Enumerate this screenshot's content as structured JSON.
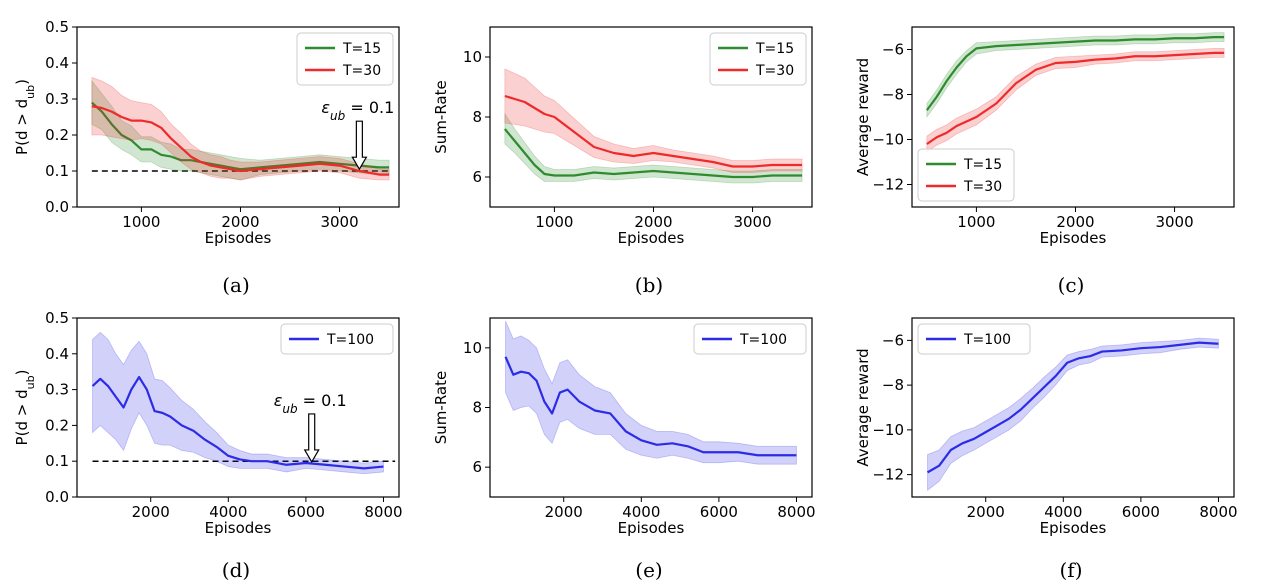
{
  "chart_data": [
    {
      "id": "a",
      "panel_label": "(a)",
      "type": "line",
      "xlabel": "Episodes",
      "ylabel": "P(d > dub)",
      "xlim": [
        350,
        3600
      ],
      "ylim": [
        0,
        0.5
      ],
      "xticks": [
        1000,
        2000,
        3000
      ],
      "yticks": [
        0.0,
        0.1,
        0.2,
        0.3,
        0.4,
        0.5
      ],
      "ytick_labels": [
        "0.0",
        "0.1",
        "0.2",
        "0.3",
        "0.4",
        "0.5"
      ],
      "legend_loc": "upper-right",
      "reference_line": {
        "y": 0.1,
        "style": "dashed",
        "color": "#000000"
      },
      "annotation": {
        "text": "ε_ub = 0.1",
        "arrow_to": [
          3200,
          0.105
        ]
      },
      "series": [
        {
          "name": "T=15",
          "color": "#2e8b2e",
          "x": [
            500,
            600,
            700,
            800,
            900,
            1000,
            1100,
            1200,
            1300,
            1400,
            1500,
            1600,
            1700,
            1800,
            1900,
            2000,
            2200,
            2400,
            2600,
            2800,
            3000,
            3200,
            3400,
            3500
          ],
          "y": [
            0.29,
            0.265,
            0.23,
            0.2,
            0.185,
            0.16,
            0.16,
            0.145,
            0.14,
            0.13,
            0.13,
            0.125,
            0.12,
            0.115,
            0.11,
            0.105,
            0.11,
            0.115,
            0.12,
            0.125,
            0.12,
            0.115,
            0.11,
            0.11
          ],
          "band": [
            0.06,
            0.05,
            0.05,
            0.04,
            0.04,
            0.035,
            0.035,
            0.035,
            0.035,
            0.03,
            0.03,
            0.03,
            0.03,
            0.03,
            0.03,
            0.03,
            0.02,
            0.02,
            0.02,
            0.02,
            0.02,
            0.02,
            0.02,
            0.02
          ]
        },
        {
          "name": "T=30",
          "color": "#ee2a2a",
          "x": [
            500,
            600,
            700,
            800,
            900,
            1000,
            1100,
            1200,
            1300,
            1400,
            1500,
            1600,
            1700,
            1800,
            1900,
            2000,
            2200,
            2400,
            2600,
            2800,
            3000,
            3200,
            3400,
            3500
          ],
          "y": [
            0.28,
            0.275,
            0.265,
            0.25,
            0.24,
            0.24,
            0.235,
            0.22,
            0.19,
            0.165,
            0.14,
            0.125,
            0.115,
            0.11,
            0.105,
            0.1,
            0.105,
            0.11,
            0.115,
            0.12,
            0.115,
            0.1,
            0.09,
            0.09
          ],
          "band": [
            0.08,
            0.075,
            0.07,
            0.06,
            0.055,
            0.05,
            0.05,
            0.045,
            0.04,
            0.04,
            0.035,
            0.03,
            0.03,
            0.03,
            0.025,
            0.025,
            0.02,
            0.02,
            0.02,
            0.02,
            0.02,
            0.02,
            0.015,
            0.015
          ]
        }
      ]
    },
    {
      "id": "b",
      "panel_label": "(b)",
      "type": "line",
      "xlabel": "Episodes",
      "ylabel": "Sum-Rate",
      "xlim": [
        350,
        3600
      ],
      "ylim": [
        5,
        11
      ],
      "xticks": [
        1000,
        2000,
        3000
      ],
      "yticks": [
        6,
        8,
        10
      ],
      "ytick_labels": [
        "6",
        "8",
        "10"
      ],
      "legend_loc": "upper-right",
      "series": [
        {
          "name": "T=15",
          "color": "#2e8b2e",
          "x": [
            500,
            600,
            700,
            800,
            900,
            1000,
            1200,
            1400,
            1600,
            1800,
            2000,
            2200,
            2400,
            2600,
            2800,
            3000,
            3200,
            3400,
            3500
          ],
          "y": [
            7.6,
            7.2,
            6.8,
            6.4,
            6.1,
            6.05,
            6.05,
            6.15,
            6.1,
            6.15,
            6.2,
            6.15,
            6.1,
            6.05,
            6.0,
            6.0,
            6.05,
            6.05,
            6.05
          ],
          "band": [
            0.5,
            0.4,
            0.35,
            0.3,
            0.25,
            0.2,
            0.2,
            0.2,
            0.2,
            0.2,
            0.2,
            0.2,
            0.2,
            0.2,
            0.2,
            0.2,
            0.2,
            0.2,
            0.2
          ]
        },
        {
          "name": "T=30",
          "color": "#ee2a2a",
          "x": [
            500,
            600,
            700,
            800,
            900,
            1000,
            1200,
            1400,
            1600,
            1800,
            2000,
            2200,
            2400,
            2600,
            2800,
            3000,
            3200,
            3400,
            3500
          ],
          "y": [
            8.7,
            8.6,
            8.5,
            8.3,
            8.1,
            8.0,
            7.5,
            7.0,
            6.8,
            6.7,
            6.8,
            6.7,
            6.6,
            6.5,
            6.35,
            6.35,
            6.4,
            6.4,
            6.4
          ],
          "band": [
            0.9,
            0.85,
            0.8,
            0.7,
            0.6,
            0.55,
            0.45,
            0.35,
            0.3,
            0.25,
            0.25,
            0.2,
            0.2,
            0.2,
            0.2,
            0.2,
            0.2,
            0.2,
            0.2
          ]
        }
      ]
    },
    {
      "id": "c",
      "panel_label": "(c)",
      "type": "line",
      "xlabel": "Episodes",
      "ylabel": "Average reward",
      "xlim": [
        350,
        3600
      ],
      "ylim": [
        -13,
        -5
      ],
      "xticks": [
        1000,
        2000,
        3000
      ],
      "yticks": [
        -12,
        -10,
        -8,
        -6
      ],
      "ytick_labels": [
        "−12",
        "−10",
        "−8",
        "−6"
      ],
      "legend_loc": "lower-left",
      "series": [
        {
          "name": "T=15",
          "color": "#2e8b2e",
          "x": [
            500,
            600,
            700,
            800,
            900,
            1000,
            1200,
            1400,
            1600,
            1800,
            2000,
            2200,
            2400,
            2600,
            2800,
            3000,
            3200,
            3400,
            3500
          ],
          "y": [
            -8.7,
            -8.1,
            -7.4,
            -6.8,
            -6.3,
            -5.95,
            -5.85,
            -5.8,
            -5.75,
            -5.7,
            -5.65,
            -5.6,
            -5.6,
            -5.55,
            -5.55,
            -5.5,
            -5.5,
            -5.45,
            -5.45
          ],
          "band": [
            0.3,
            0.3,
            0.3,
            0.3,
            0.25,
            0.25,
            0.2,
            0.2,
            0.2,
            0.2,
            0.2,
            0.2,
            0.2,
            0.2,
            0.2,
            0.2,
            0.2,
            0.2,
            0.2
          ]
        },
        {
          "name": "T=30",
          "color": "#ee2a2a",
          "x": [
            500,
            600,
            700,
            800,
            900,
            1000,
            1200,
            1400,
            1600,
            1800,
            2000,
            2200,
            2400,
            2600,
            2800,
            3000,
            3200,
            3400,
            3500
          ],
          "y": [
            -10.2,
            -9.9,
            -9.7,
            -9.4,
            -9.2,
            -9.0,
            -8.4,
            -7.5,
            -6.9,
            -6.6,
            -6.55,
            -6.45,
            -6.4,
            -6.3,
            -6.3,
            -6.25,
            -6.2,
            -6.15,
            -6.15
          ],
          "band": [
            0.35,
            0.35,
            0.35,
            0.35,
            0.35,
            0.35,
            0.3,
            0.3,
            0.25,
            0.25,
            0.25,
            0.2,
            0.2,
            0.2,
            0.2,
            0.2,
            0.2,
            0.2,
            0.2
          ]
        }
      ]
    },
    {
      "id": "d",
      "panel_label": "(d)",
      "type": "line",
      "xlabel": "Episodes",
      "ylabel": "P(d > dub)",
      "xlim": [
        100,
        8400
      ],
      "ylim": [
        0,
        0.5
      ],
      "xticks": [
        2000,
        4000,
        6000,
        8000
      ],
      "yticks": [
        0.0,
        0.1,
        0.2,
        0.3,
        0.4,
        0.5
      ],
      "ytick_labels": [
        "0.0",
        "0.1",
        "0.2",
        "0.3",
        "0.4",
        "0.5"
      ],
      "legend_loc": "upper-right",
      "reference_line": {
        "y": 0.1,
        "style": "dashed",
        "color": "#000000"
      },
      "annotation": {
        "text": "ε_ub = 0.1",
        "arrow_to": [
          6150,
          0.098
        ]
      },
      "series": [
        {
          "name": "T=100",
          "color": "#2c2ce6",
          "x": [
            500,
            700,
            900,
            1100,
            1300,
            1500,
            1700,
            1900,
            2100,
            2300,
            2500,
            2800,
            3100,
            3400,
            3700,
            4000,
            4300,
            4600,
            5000,
            5500,
            6000,
            6500,
            7000,
            7500,
            8000
          ],
          "y": [
            0.31,
            0.33,
            0.31,
            0.28,
            0.25,
            0.3,
            0.335,
            0.3,
            0.24,
            0.235,
            0.225,
            0.2,
            0.185,
            0.16,
            0.14,
            0.115,
            0.105,
            0.1,
            0.1,
            0.09,
            0.095,
            0.09,
            0.085,
            0.08,
            0.085
          ],
          "band": [
            0.13,
            0.13,
            0.13,
            0.12,
            0.12,
            0.11,
            0.1,
            0.1,
            0.09,
            0.09,
            0.08,
            0.07,
            0.06,
            0.05,
            0.04,
            0.03,
            0.025,
            0.02,
            0.02,
            0.02,
            0.015,
            0.015,
            0.015,
            0.015,
            0.015
          ]
        }
      ]
    },
    {
      "id": "e",
      "panel_label": "(e)",
      "type": "line",
      "xlabel": "Episodes",
      "ylabel": "Sum-Rate",
      "xlim": [
        100,
        8400
      ],
      "ylim": [
        5,
        11
      ],
      "xticks": [
        2000,
        4000,
        6000,
        8000
      ],
      "yticks": [
        6,
        8,
        10
      ],
      "ytick_labels": [
        "6",
        "8",
        "10"
      ],
      "legend_loc": "upper-right",
      "series": [
        {
          "name": "T=100",
          "color": "#2c2ce6",
          "x": [
            500,
            700,
            900,
            1100,
            1300,
            1500,
            1700,
            1900,
            2100,
            2400,
            2800,
            3200,
            3600,
            4000,
            4400,
            4800,
            5200,
            5600,
            6000,
            6500,
            7000,
            7500,
            8000
          ],
          "y": [
            9.7,
            9.1,
            9.2,
            9.15,
            8.9,
            8.2,
            7.8,
            8.5,
            8.6,
            8.2,
            7.9,
            7.8,
            7.2,
            6.9,
            6.75,
            6.8,
            6.7,
            6.5,
            6.5,
            6.5,
            6.4,
            6.4,
            6.4
          ],
          "band": [
            1.2,
            1.2,
            1.2,
            1.1,
            1.1,
            1.1,
            1.0,
            1.0,
            1.0,
            0.9,
            0.8,
            0.7,
            0.6,
            0.5,
            0.45,
            0.4,
            0.4,
            0.35,
            0.35,
            0.3,
            0.3,
            0.3,
            0.3
          ]
        }
      ]
    },
    {
      "id": "f",
      "panel_label": "(f)",
      "type": "line",
      "xlabel": "Episodes",
      "ylabel": "Average reward",
      "xlim": [
        100,
        8400
      ],
      "ylim": [
        -13,
        -5
      ],
      "xticks": [
        2000,
        4000,
        6000,
        8000
      ],
      "yticks": [
        -12,
        -10,
        -8,
        -6
      ],
      "ytick_labels": [
        "−12",
        "−10",
        "−8",
        "−6"
      ],
      "legend_loc": "upper-left",
      "series": [
        {
          "name": "T=100",
          "color": "#2c2ce6",
          "x": [
            500,
            800,
            1100,
            1400,
            1700,
            2000,
            2300,
            2600,
            2900,
            3200,
            3500,
            3800,
            4100,
            4400,
            4700,
            5000,
            5500,
            6000,
            6500,
            7000,
            7500,
            8000
          ],
          "y": [
            -11.9,
            -11.6,
            -10.9,
            -10.6,
            -10.4,
            -10.1,
            -9.8,
            -9.5,
            -9.1,
            -8.6,
            -8.1,
            -7.6,
            -7.0,
            -6.8,
            -6.7,
            -6.5,
            -6.45,
            -6.35,
            -6.3,
            -6.2,
            -6.1,
            -6.15
          ],
          "band": [
            0.8,
            0.7,
            0.6,
            0.55,
            0.5,
            0.5,
            0.5,
            0.5,
            0.5,
            0.45,
            0.45,
            0.4,
            0.35,
            0.3,
            0.3,
            0.25,
            0.25,
            0.25,
            0.25,
            0.2,
            0.2,
            0.2
          ]
        }
      ]
    }
  ]
}
